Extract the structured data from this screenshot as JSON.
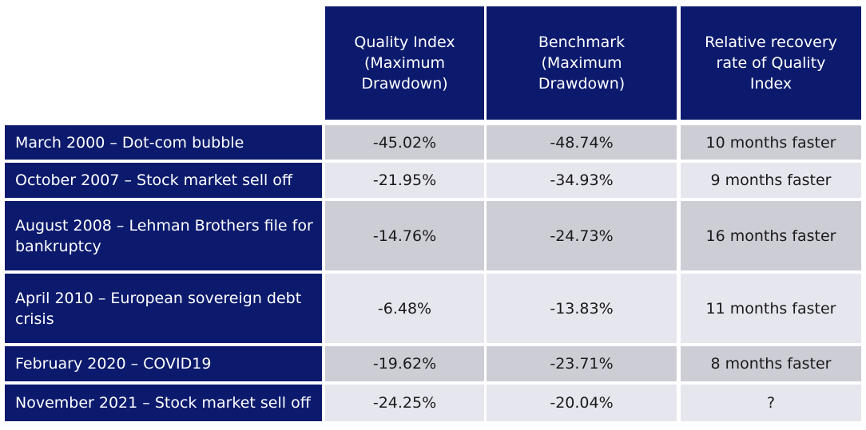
{
  "headers": [
    "Quality Index (Maximum Drawdown)",
    "Benchmark (Maximum Drawdown)",
    "Relative recovery rate of Quality Index"
  ],
  "rows": [
    {
      "event": "March 2000 – Dot-com bubble",
      "quality": "-45.02%",
      "benchmark": "-48.74%",
      "recovery": "10 months faster"
    },
    {
      "event": "October 2007 – Stock market sell off",
      "quality": "-21.95%",
      "benchmark": "-34.93%",
      "recovery": "9 months faster"
    },
    {
      "event": "August 2008 – Lehman Brothers file for bankruptcy",
      "quality": "-14.76%",
      "benchmark": "-24.73%",
      "recovery": "16 months faster"
    },
    {
      "event": "April 2010 – European sovereign debt crisis",
      "quality": "-6.48%",
      "benchmark": "-13.83%",
      "recovery": "11 months faster"
    },
    {
      "event": "February 2020 – COVID19",
      "quality": "-19.62%",
      "benchmark": "-23.71%",
      "recovery": "8 months faster"
    },
    {
      "event": "November 2021 – Stock market sell off",
      "quality": "-24.25%",
      "benchmark": "-20.04%",
      "recovery": "?"
    }
  ],
  "colors": {
    "header_bg": "#0c1a6e",
    "row_dark": "#cdcdd6",
    "row_light": "#e6e6ee"
  }
}
